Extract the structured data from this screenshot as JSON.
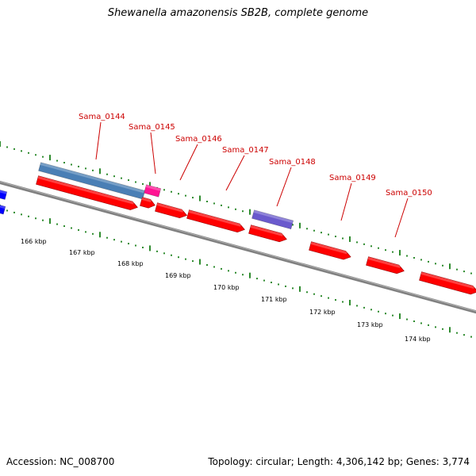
{
  "title": "Shewanella amazonensis SB2B, complete genome",
  "accession": "Accession: NC_008700",
  "summary": "Topology: circular; Length: 4,306,142 bp; Genes: 3,774",
  "colors": {
    "backbone": "#808080",
    "cds_reverse": "#ff0000",
    "gene_steelblue": "#4a7fb5",
    "gene_magenta": "#ff1493",
    "gene_purple": "#6a5acd",
    "offscreen_blue": "#0000ff",
    "ticks": "#2e8b2e",
    "labels": "#cc0000"
  },
  "gene_labels": [
    "Sama_0144",
    "Sama_0145",
    "Sama_0146",
    "Sama_0147",
    "Sama_0148",
    "Sama_0149",
    "Sama_0150"
  ],
  "scale_labels": [
    "166 kbp",
    "167 kbp",
    "168 kbp",
    "169 kbp",
    "170 kbp",
    "171 kbp",
    "172 kbp",
    "173 kbp",
    "174 kbp"
  ]
}
